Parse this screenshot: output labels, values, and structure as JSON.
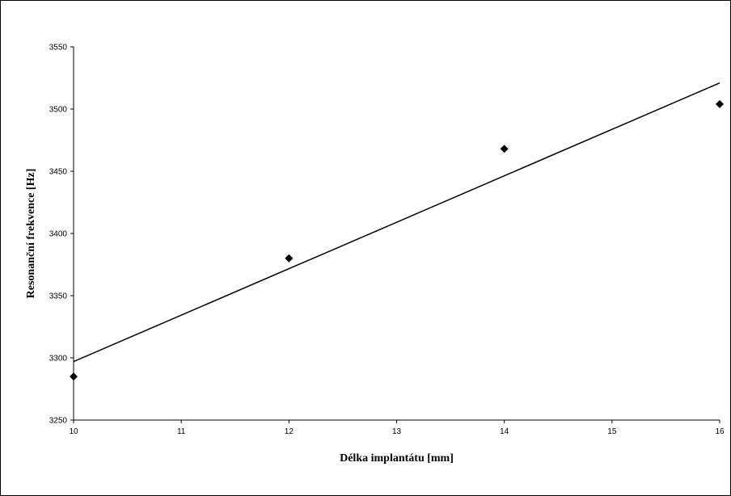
{
  "chart_data": {
    "type": "scatter",
    "title": "",
    "xlabel": "Délka implantátu [mm]",
    "ylabel": "Resonanční frekvence [Hz]",
    "xlim": [
      10,
      16
    ],
    "ylim": [
      3250,
      3550
    ],
    "x_ticks": [
      10,
      11,
      12,
      13,
      14,
      15,
      16
    ],
    "x_tick_labels": [
      "10",
      "11",
      "12",
      "13",
      "14",
      "15",
      "16"
    ],
    "y_ticks": [
      3250,
      3300,
      3350,
      3400,
      3450,
      3500,
      3550
    ],
    "y_tick_labels": [
      "3250",
      "3300",
      "3350",
      "3400",
      "3450",
      "3500",
      "3550"
    ],
    "grid": false,
    "legend": "none",
    "series": [
      {
        "x": [
          10,
          12,
          14,
          16
        ],
        "y": [
          3285,
          3380,
          3468,
          3504
        ],
        "marker": "diamond",
        "color": "#000000"
      }
    ],
    "trendline": {
      "type": "linear",
      "x": [
        10,
        16
      ],
      "y": [
        3297,
        3521
      ],
      "color": "#000000"
    }
  }
}
